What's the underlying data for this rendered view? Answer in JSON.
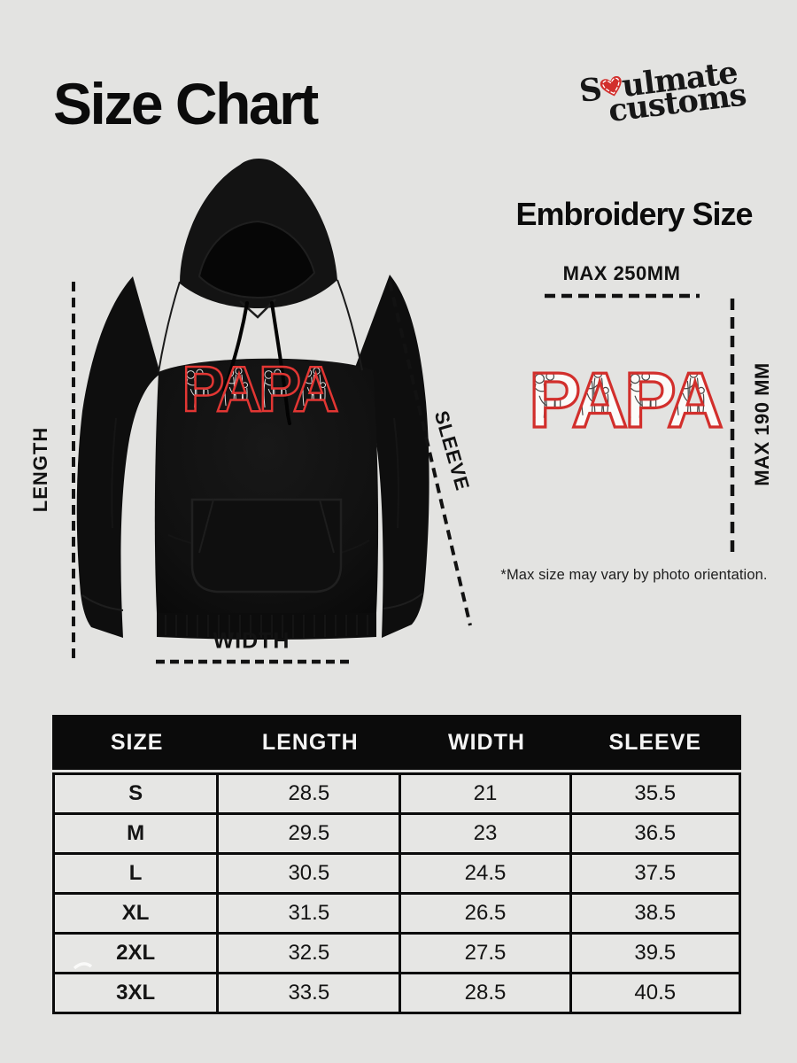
{
  "page": {
    "background": "#e3e3e1",
    "accent_red": "#d22f2c",
    "ink": "#0b0b0b"
  },
  "title": "Size Chart",
  "brand": {
    "line1_pre": "S",
    "line1_post": "ulmate",
    "line2": "customs",
    "heart_icon": "stitched-heart"
  },
  "product": {
    "embroidery_text": "PAPA",
    "labels": {
      "length": "LENGTH",
      "width": "WIDTH",
      "sleeve": "SLEEVE"
    }
  },
  "embroidery_panel": {
    "heading": "Embroidery Size",
    "max_width_label": "MAX 250MM",
    "max_height_label": "MAX 190 MM",
    "sample_text": "PAPA",
    "footnote": "*Max size may vary by photo orientation."
  },
  "chart_data": {
    "type": "table",
    "title": "Size Chart",
    "columns": [
      "SIZE",
      "LENGTH",
      "WIDTH",
      "SLEEVE"
    ],
    "rows": [
      {
        "size": "S",
        "length": "28.5",
        "width": "21",
        "sleeve": "35.5"
      },
      {
        "size": "M",
        "length": "29.5",
        "width": "23",
        "sleeve": "36.5"
      },
      {
        "size": "L",
        "length": "30.5",
        "width": "24.5",
        "sleeve": "37.5"
      },
      {
        "size": "XL",
        "length": "31.5",
        "width": "26.5",
        "sleeve": "38.5"
      },
      {
        "size": "2XL",
        "length": "32.5",
        "width": "27.5",
        "sleeve": "39.5"
      },
      {
        "size": "3XL",
        "length": "33.5",
        "width": "28.5",
        "sleeve": "40.5"
      }
    ]
  }
}
